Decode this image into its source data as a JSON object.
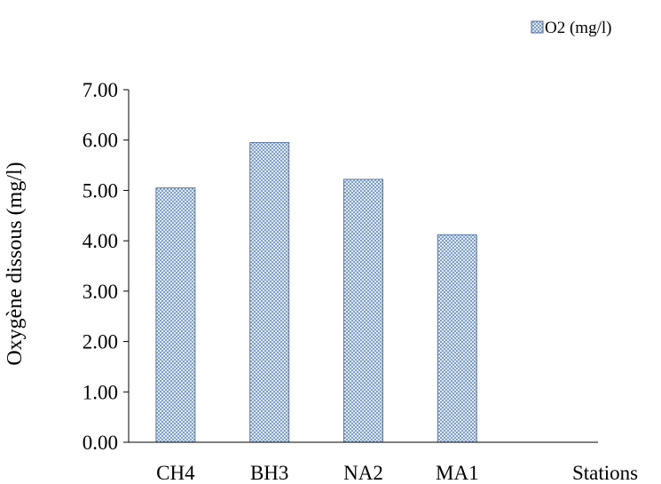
{
  "chart_data": {
    "type": "bar",
    "categories": [
      "CH4",
      "BH3",
      "NA2",
      "MA1"
    ],
    "series": [
      {
        "name": "O2 (mg/l)",
        "values": [
          5.05,
          5.95,
          5.22,
          4.12
        ],
        "color": "#8aa9d0"
      }
    ],
    "xlabel": "Stations",
    "ylabel": "Oxygène dissous  (mg/l)",
    "ylim": [
      0,
      7
    ],
    "yticks": [
      "0.00",
      "1.00",
      "2.00",
      "3.00",
      "4.00",
      "5.00",
      "6.00",
      "7.00"
    ],
    "grid": false,
    "legend_position": "top-right"
  }
}
